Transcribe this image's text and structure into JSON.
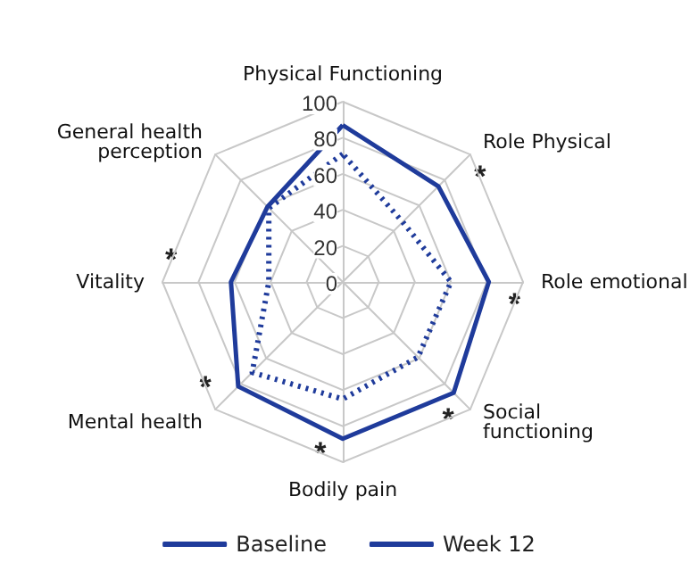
{
  "chart_data": {
    "type": "radar",
    "categories": [
      "Physical Functioning",
      "Role Physical",
      "Role emotional",
      "Social functioning",
      "Bodily pain",
      "Mental health",
      "Vitality",
      "General health perception"
    ],
    "series": [
      {
        "name": "Baseline",
        "color": "#1f3b9b",
        "line_style": "dotted",
        "values": [
          71,
          47,
          60,
          59,
          65,
          71,
          41,
          58
        ]
      },
      {
        "name": "Week 12",
        "color": "#1f3b9b",
        "line_style": "solid",
        "values": [
          87,
          75,
          81,
          87,
          87,
          82,
          62,
          59
        ]
      }
    ],
    "ylim": [
      0,
      100
    ],
    "yticks": [
      0,
      20,
      40,
      60,
      80,
      100
    ],
    "grid": true,
    "legend": "bottom",
    "marker": "none",
    "annotations": [
      {
        "text": "*",
        "x": "Role Physical"
      },
      {
        "text": "*",
        "x": "Role emotional"
      },
      {
        "text": "*",
        "x": "Social functioning"
      },
      {
        "text": "*",
        "x": "Bodily pain"
      },
      {
        "text": "*",
        "x": "Mental health"
      },
      {
        "text": "*",
        "x": "Vitality"
      }
    ]
  }
}
